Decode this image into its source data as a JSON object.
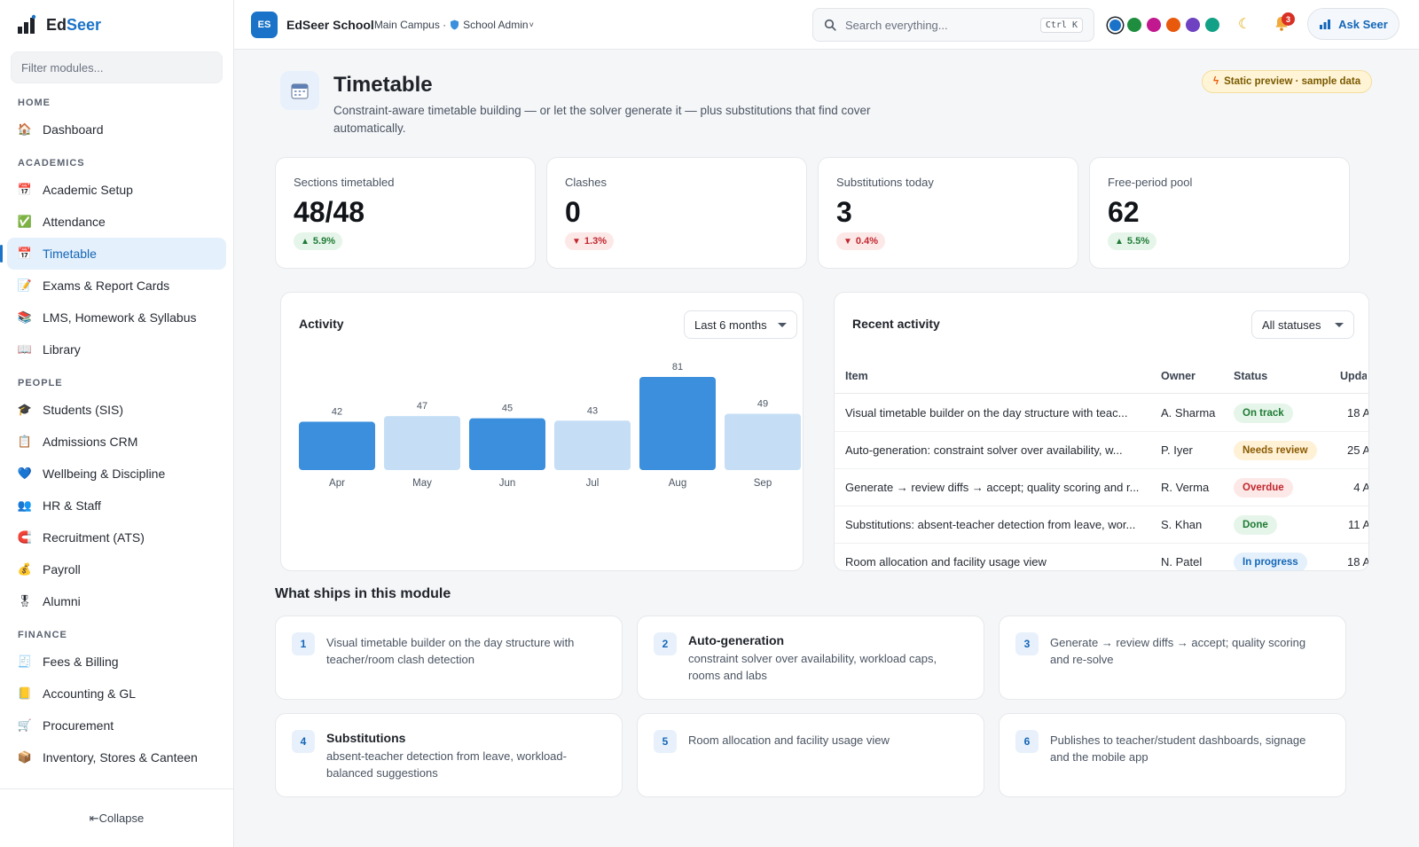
{
  "brand": {
    "name_a": "Ed",
    "name_b": "Seer"
  },
  "sidebar": {
    "filter_placeholder": "Filter modules...",
    "sections": [
      {
        "title": "HOME",
        "items": [
          {
            "label": "Dashboard",
            "icon": "house-icon",
            "glyph": "🏠"
          }
        ]
      },
      {
        "title": "ACADEMICS",
        "items": [
          {
            "label": "Academic Setup",
            "icon": "calendar-icon",
            "glyph": "📅"
          },
          {
            "label": "Attendance",
            "icon": "checkbox-icon",
            "glyph": "✅"
          },
          {
            "label": "Timetable",
            "icon": "calendar-icon",
            "glyph": "📅",
            "active": true
          },
          {
            "label": "Exams & Report Cards",
            "icon": "memo-icon",
            "glyph": "📝"
          },
          {
            "label": "LMS, Homework & Syllabus",
            "icon": "books-icon",
            "glyph": "📚"
          },
          {
            "label": "Library",
            "icon": "open-book-icon",
            "glyph": "📖"
          }
        ]
      },
      {
        "title": "PEOPLE",
        "items": [
          {
            "label": "Students (SIS)",
            "icon": "graduation-cap-icon",
            "glyph": "🎓"
          },
          {
            "label": "Admissions CRM",
            "icon": "form-icon",
            "glyph": "📋"
          },
          {
            "label": "Wellbeing & Discipline",
            "icon": "heart-icon",
            "glyph": "💙"
          },
          {
            "label": "HR & Staff",
            "icon": "people-icon",
            "glyph": "👥"
          },
          {
            "label": "Recruitment (ATS)",
            "icon": "magnet-icon",
            "glyph": "🧲"
          },
          {
            "label": "Payroll",
            "icon": "money-bag-icon",
            "glyph": "💰"
          },
          {
            "label": "Alumni",
            "icon": "medal-icon",
            "glyph": "🎖"
          }
        ]
      },
      {
        "title": "FINANCE",
        "items": [
          {
            "label": "Fees & Billing",
            "icon": "receipt-icon",
            "glyph": "🧾"
          },
          {
            "label": "Accounting & GL",
            "icon": "ledger-icon",
            "glyph": "📒"
          },
          {
            "label": "Procurement",
            "icon": "cart-icon",
            "glyph": "🛒"
          },
          {
            "label": "Inventory, Stores & Canteen",
            "icon": "box-icon",
            "glyph": "📦"
          }
        ]
      }
    ],
    "collapse_label": "⇤Collapse"
  },
  "topbar": {
    "badge": "ES",
    "school": "EdSeer School",
    "campus": "Main Campus ·",
    "role": "School Admin",
    "role_caret": "˅",
    "search_placeholder": "Search everything...",
    "shortcut": "Ctrl K",
    "theme_colors": [
      "#1a73c8",
      "#1e8e3e",
      "#c2188f",
      "#e8590c",
      "#6f42c1",
      "#12a086"
    ],
    "notif_count": "3",
    "ask_label": "Ask Seer"
  },
  "page": {
    "title": "Timetable",
    "subtitle": "Constraint-aware timetable building — or let the solver generate it — plus substitutions that find cover automatically.",
    "preview_pill": "Static preview · sample data"
  },
  "stats": [
    {
      "label": "Sections timetabled",
      "value": "48/48",
      "delta": "5.9%",
      "dir": "up"
    },
    {
      "label": "Clashes",
      "value": "0",
      "delta": "1.3%",
      "dir": "down"
    },
    {
      "label": "Substitutions today",
      "value": "3",
      "delta": "0.4%",
      "dir": "down"
    },
    {
      "label": "Free-period pool",
      "value": "62",
      "delta": "5.5%",
      "dir": "up"
    }
  ],
  "activity": {
    "title": "Activity",
    "range": "Last 6 months"
  },
  "chart_data": {
    "type": "bar",
    "categories": [
      "Apr",
      "May",
      "Jun",
      "Jul",
      "Aug",
      "Sep"
    ],
    "values": [
      42,
      47,
      45,
      43,
      81,
      49
    ],
    "colors": [
      "#3b8fdc",
      "#c6def5",
      "#3b8fdc",
      "#c6def5",
      "#3b8fdc",
      "#c6def5"
    ],
    "ylim": [
      0,
      81
    ]
  },
  "recent": {
    "title": "Recent activity",
    "filter": "All statuses",
    "columns": [
      "Item",
      "Owner",
      "Status",
      "Upda"
    ],
    "rows": [
      {
        "item": "Visual timetable builder on the day structure with teac...",
        "owner": "A. Sharma",
        "status": "On track",
        "updated": "18 A"
      },
      {
        "item": "Auto-generation: constraint solver over availability, w...",
        "owner": "P. Iyer",
        "status": "Needs review",
        "updated": "25 A"
      },
      {
        "item": "Generate → review diffs → accept; quality scoring and r...",
        "owner": "R. Verma",
        "status": "Overdue",
        "updated": "4 A"
      },
      {
        "item": "Substitutions: absent-teacher detection from leave, wor...",
        "owner": "S. Khan",
        "status": "Done",
        "updated": "11 A"
      },
      {
        "item": "Room allocation and facility usage view",
        "owner": "N. Patel",
        "status": "In progress",
        "updated": "18 A"
      }
    ],
    "status_colors": {
      "On track": {
        "bg": "#e6f5ea",
        "fg": "#1e7b34"
      },
      "Needs review": {
        "bg": "#fff1d6",
        "fg": "#8a5a00"
      },
      "Overdue": {
        "bg": "#fde8e8",
        "fg": "#c0262d"
      },
      "Done": {
        "bg": "#e6f5ea",
        "fg": "#1e7b34"
      },
      "In progress": {
        "bg": "#e4f0fb",
        "fg": "#1366b8"
      }
    }
  },
  "ships": {
    "title": "What ships in this module",
    "items": [
      {
        "n": "1",
        "title": "",
        "desc": "Visual timetable builder on the day structure with teacher/room clash detection"
      },
      {
        "n": "2",
        "title": "Auto-generation",
        "desc": "constraint solver over availability, workload caps, rooms and labs"
      },
      {
        "n": "3",
        "title": "",
        "desc": "Generate → review diffs → accept; quality scoring and re-solve"
      },
      {
        "n": "4",
        "title": "Substitutions",
        "desc": "absent-teacher detection from leave, workload-balanced suggestions"
      },
      {
        "n": "5",
        "title": "",
        "desc": "Room allocation and facility usage view"
      },
      {
        "n": "6",
        "title": "",
        "desc": "Publishes to teacher/student dashboards, signage and the mobile app"
      }
    ]
  }
}
